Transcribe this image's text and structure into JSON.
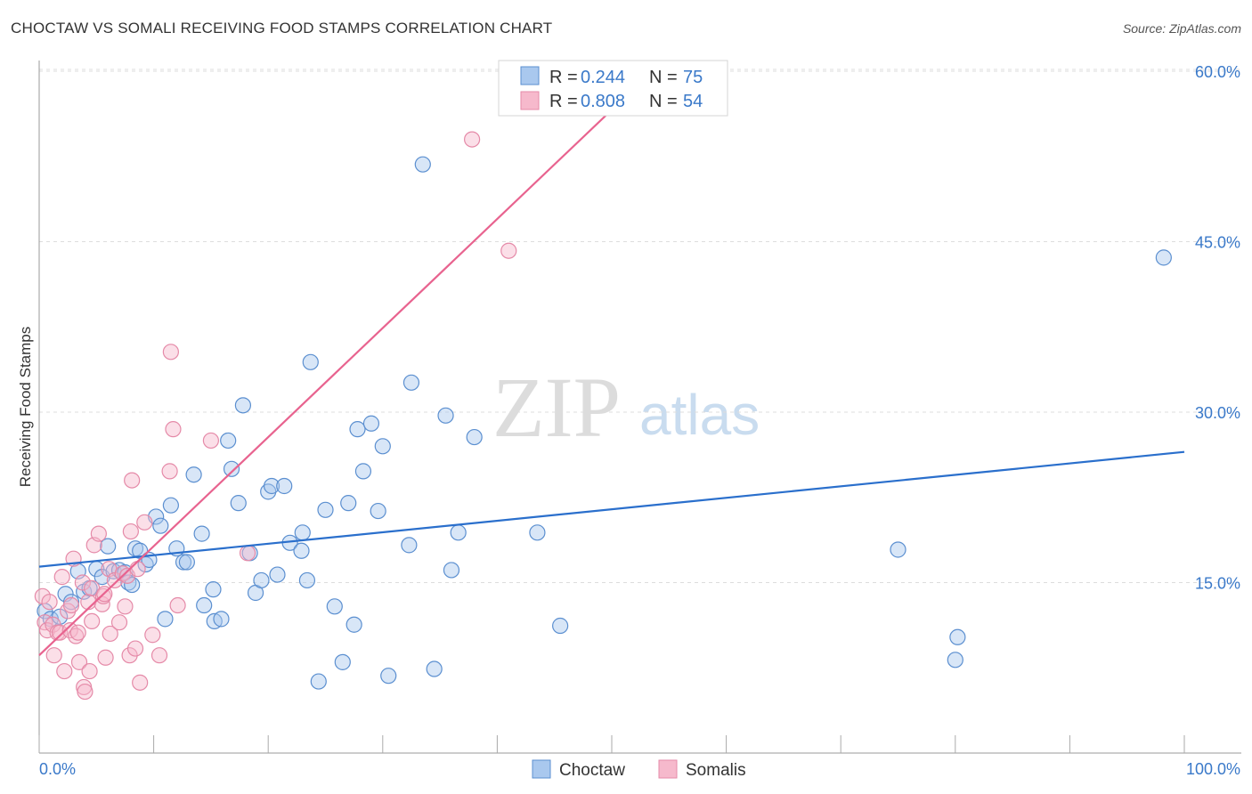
{
  "header": {
    "title": "CHOCTAW VS SOMALI RECEIVING FOOD STAMPS CORRELATION CHART",
    "source": "Source: ZipAtlas.com"
  },
  "watermark": {
    "zip": "ZIP",
    "atlas": "atlas"
  },
  "legend": {
    "rows": [
      {
        "r_label": "R = ",
        "r_value": "0.244",
        "n_label": "N = ",
        "n_value": "75"
      },
      {
        "r_label": "R = ",
        "r_value": "0.808",
        "n_label": "N = ",
        "n_value": "54"
      }
    ]
  },
  "bottom_legend": {
    "choctaw": "Choctaw",
    "somalis": "Somalis"
  },
  "colors": {
    "choctaw_fill": "#a9c8ee",
    "choctaw_stroke": "#5b8fd0",
    "choctaw_line": "#2a6fcc",
    "somali_fill": "#f6b9cc",
    "somali_stroke": "#e58aa8",
    "somali_line": "#e8638f",
    "tick_text": "#3a79c9"
  },
  "chart_data": {
    "type": "scatter",
    "title": "CHOCTAW VS SOMALI RECEIVING FOOD STAMPS CORRELATION CHART",
    "xlabel": "",
    "ylabel": "Receiving Food Stamps",
    "xlim": [
      0,
      100
    ],
    "ylim": [
      0,
      60
    ],
    "x_tick_labels": [
      "0.0%",
      "100.0%"
    ],
    "y_tick_labels": [
      "15.0%",
      "30.0%",
      "45.0%",
      "60.0%"
    ],
    "y_ticks": [
      15,
      30,
      45,
      60
    ],
    "series": [
      {
        "name": "Choctaw",
        "r": 0.244,
        "n": 75,
        "trend": {
          "x": [
            0,
            100
          ],
          "y": [
            16.4,
            26.5
          ]
        },
        "points": [
          [
            0.5,
            12.5
          ],
          [
            1.0,
            11.8
          ],
          [
            1.8,
            12.0
          ],
          [
            2.3,
            14.0
          ],
          [
            2.8,
            13.3
          ],
          [
            3.4,
            16.0
          ],
          [
            3.9,
            14.2
          ],
          [
            4.4,
            14.5
          ],
          [
            5.0,
            16.2
          ],
          [
            5.5,
            15.5
          ],
          [
            6.0,
            18.2
          ],
          [
            6.5,
            16.0
          ],
          [
            7.0,
            16.1
          ],
          [
            7.5,
            15.9
          ],
          [
            7.8,
            15.0
          ],
          [
            8.1,
            14.8
          ],
          [
            8.4,
            18.0
          ],
          [
            8.8,
            17.8
          ],
          [
            9.3,
            16.6
          ],
          [
            9.6,
            17.0
          ],
          [
            10.2,
            20.8
          ],
          [
            10.6,
            20.0
          ],
          [
            11.0,
            11.8
          ],
          [
            11.5,
            21.8
          ],
          [
            12.0,
            18.0
          ],
          [
            12.6,
            16.8
          ],
          [
            12.9,
            16.8
          ],
          [
            13.5,
            24.5
          ],
          [
            14.2,
            19.3
          ],
          [
            14.4,
            13.0
          ],
          [
            15.2,
            14.4
          ],
          [
            15.3,
            11.6
          ],
          [
            15.9,
            11.8
          ],
          [
            16.5,
            27.5
          ],
          [
            16.8,
            25.0
          ],
          [
            17.4,
            22.0
          ],
          [
            17.8,
            30.6
          ],
          [
            18.4,
            17.6
          ],
          [
            18.9,
            14.1
          ],
          [
            19.4,
            15.2
          ],
          [
            20.0,
            23.0
          ],
          [
            20.3,
            23.5
          ],
          [
            20.8,
            15.7
          ],
          [
            21.4,
            23.5
          ],
          [
            21.9,
            18.5
          ],
          [
            22.9,
            17.8
          ],
          [
            23.0,
            19.4
          ],
          [
            23.4,
            15.2
          ],
          [
            23.7,
            34.4
          ],
          [
            25.0,
            21.4
          ],
          [
            24.4,
            6.3
          ],
          [
            25.8,
            12.9
          ],
          [
            26.5,
            8.0
          ],
          [
            27.0,
            22.0
          ],
          [
            27.5,
            11.3
          ],
          [
            27.8,
            28.5
          ],
          [
            28.3,
            24.8
          ],
          [
            29.0,
            29.0
          ],
          [
            29.6,
            21.3
          ],
          [
            30.0,
            27.0
          ],
          [
            30.5,
            6.8
          ],
          [
            32.3,
            18.3
          ],
          [
            32.5,
            32.6
          ],
          [
            33.5,
            51.8
          ],
          [
            34.5,
            7.4
          ],
          [
            35.5,
            29.7
          ],
          [
            36.0,
            16.1
          ],
          [
            36.6,
            19.4
          ],
          [
            38.0,
            27.8
          ],
          [
            43.5,
            19.4
          ],
          [
            45.5,
            11.2
          ],
          [
            75.0,
            17.9
          ],
          [
            80.0,
            8.2
          ],
          [
            80.2,
            10.2
          ],
          [
            98.2,
            43.6
          ]
        ]
      },
      {
        "name": "Somalis",
        "r": 0.808,
        "n": 54,
        "trend": {
          "x": [
            0,
            50
          ],
          "y": [
            8.6,
            56.6
          ]
        },
        "points": [
          [
            0.3,
            13.8
          ],
          [
            0.5,
            11.5
          ],
          [
            0.7,
            10.8
          ],
          [
            0.9,
            13.3
          ],
          [
            1.2,
            11.3
          ],
          [
            1.3,
            8.6
          ],
          [
            1.6,
            10.6
          ],
          [
            1.8,
            10.6
          ],
          [
            2.0,
            15.5
          ],
          [
            2.2,
            7.2
          ],
          [
            2.5,
            12.5
          ],
          [
            2.7,
            10.8
          ],
          [
            2.8,
            13.0
          ],
          [
            3.0,
            17.1
          ],
          [
            3.2,
            10.3
          ],
          [
            3.4,
            10.6
          ],
          [
            3.5,
            8.0
          ],
          [
            3.8,
            15.0
          ],
          [
            3.9,
            5.8
          ],
          [
            4.0,
            5.4
          ],
          [
            4.3,
            13.3
          ],
          [
            4.4,
            7.2
          ],
          [
            4.6,
            11.6
          ],
          [
            4.6,
            14.5
          ],
          [
            4.8,
            18.3
          ],
          [
            5.2,
            19.3
          ],
          [
            5.5,
            13.1
          ],
          [
            5.6,
            13.8
          ],
          [
            5.7,
            14.0
          ],
          [
            5.8,
            8.4
          ],
          [
            6.1,
            16.2
          ],
          [
            6.2,
            10.5
          ],
          [
            6.6,
            15.2
          ],
          [
            7.0,
            11.5
          ],
          [
            7.3,
            15.8
          ],
          [
            7.5,
            12.9
          ],
          [
            7.7,
            15.6
          ],
          [
            7.9,
            8.6
          ],
          [
            8.0,
            19.5
          ],
          [
            8.1,
            24.0
          ],
          [
            8.4,
            9.2
          ],
          [
            8.6,
            16.2
          ],
          [
            8.8,
            6.2
          ],
          [
            9.2,
            20.3
          ],
          [
            9.9,
            10.4
          ],
          [
            10.5,
            8.6
          ],
          [
            11.4,
            24.8
          ],
          [
            11.5,
            35.3
          ],
          [
            11.7,
            28.5
          ],
          [
            12.1,
            13.0
          ],
          [
            15.0,
            27.5
          ],
          [
            18.2,
            17.6
          ],
          [
            37.8,
            54.0
          ],
          [
            41.0,
            44.2
          ]
        ]
      }
    ]
  }
}
